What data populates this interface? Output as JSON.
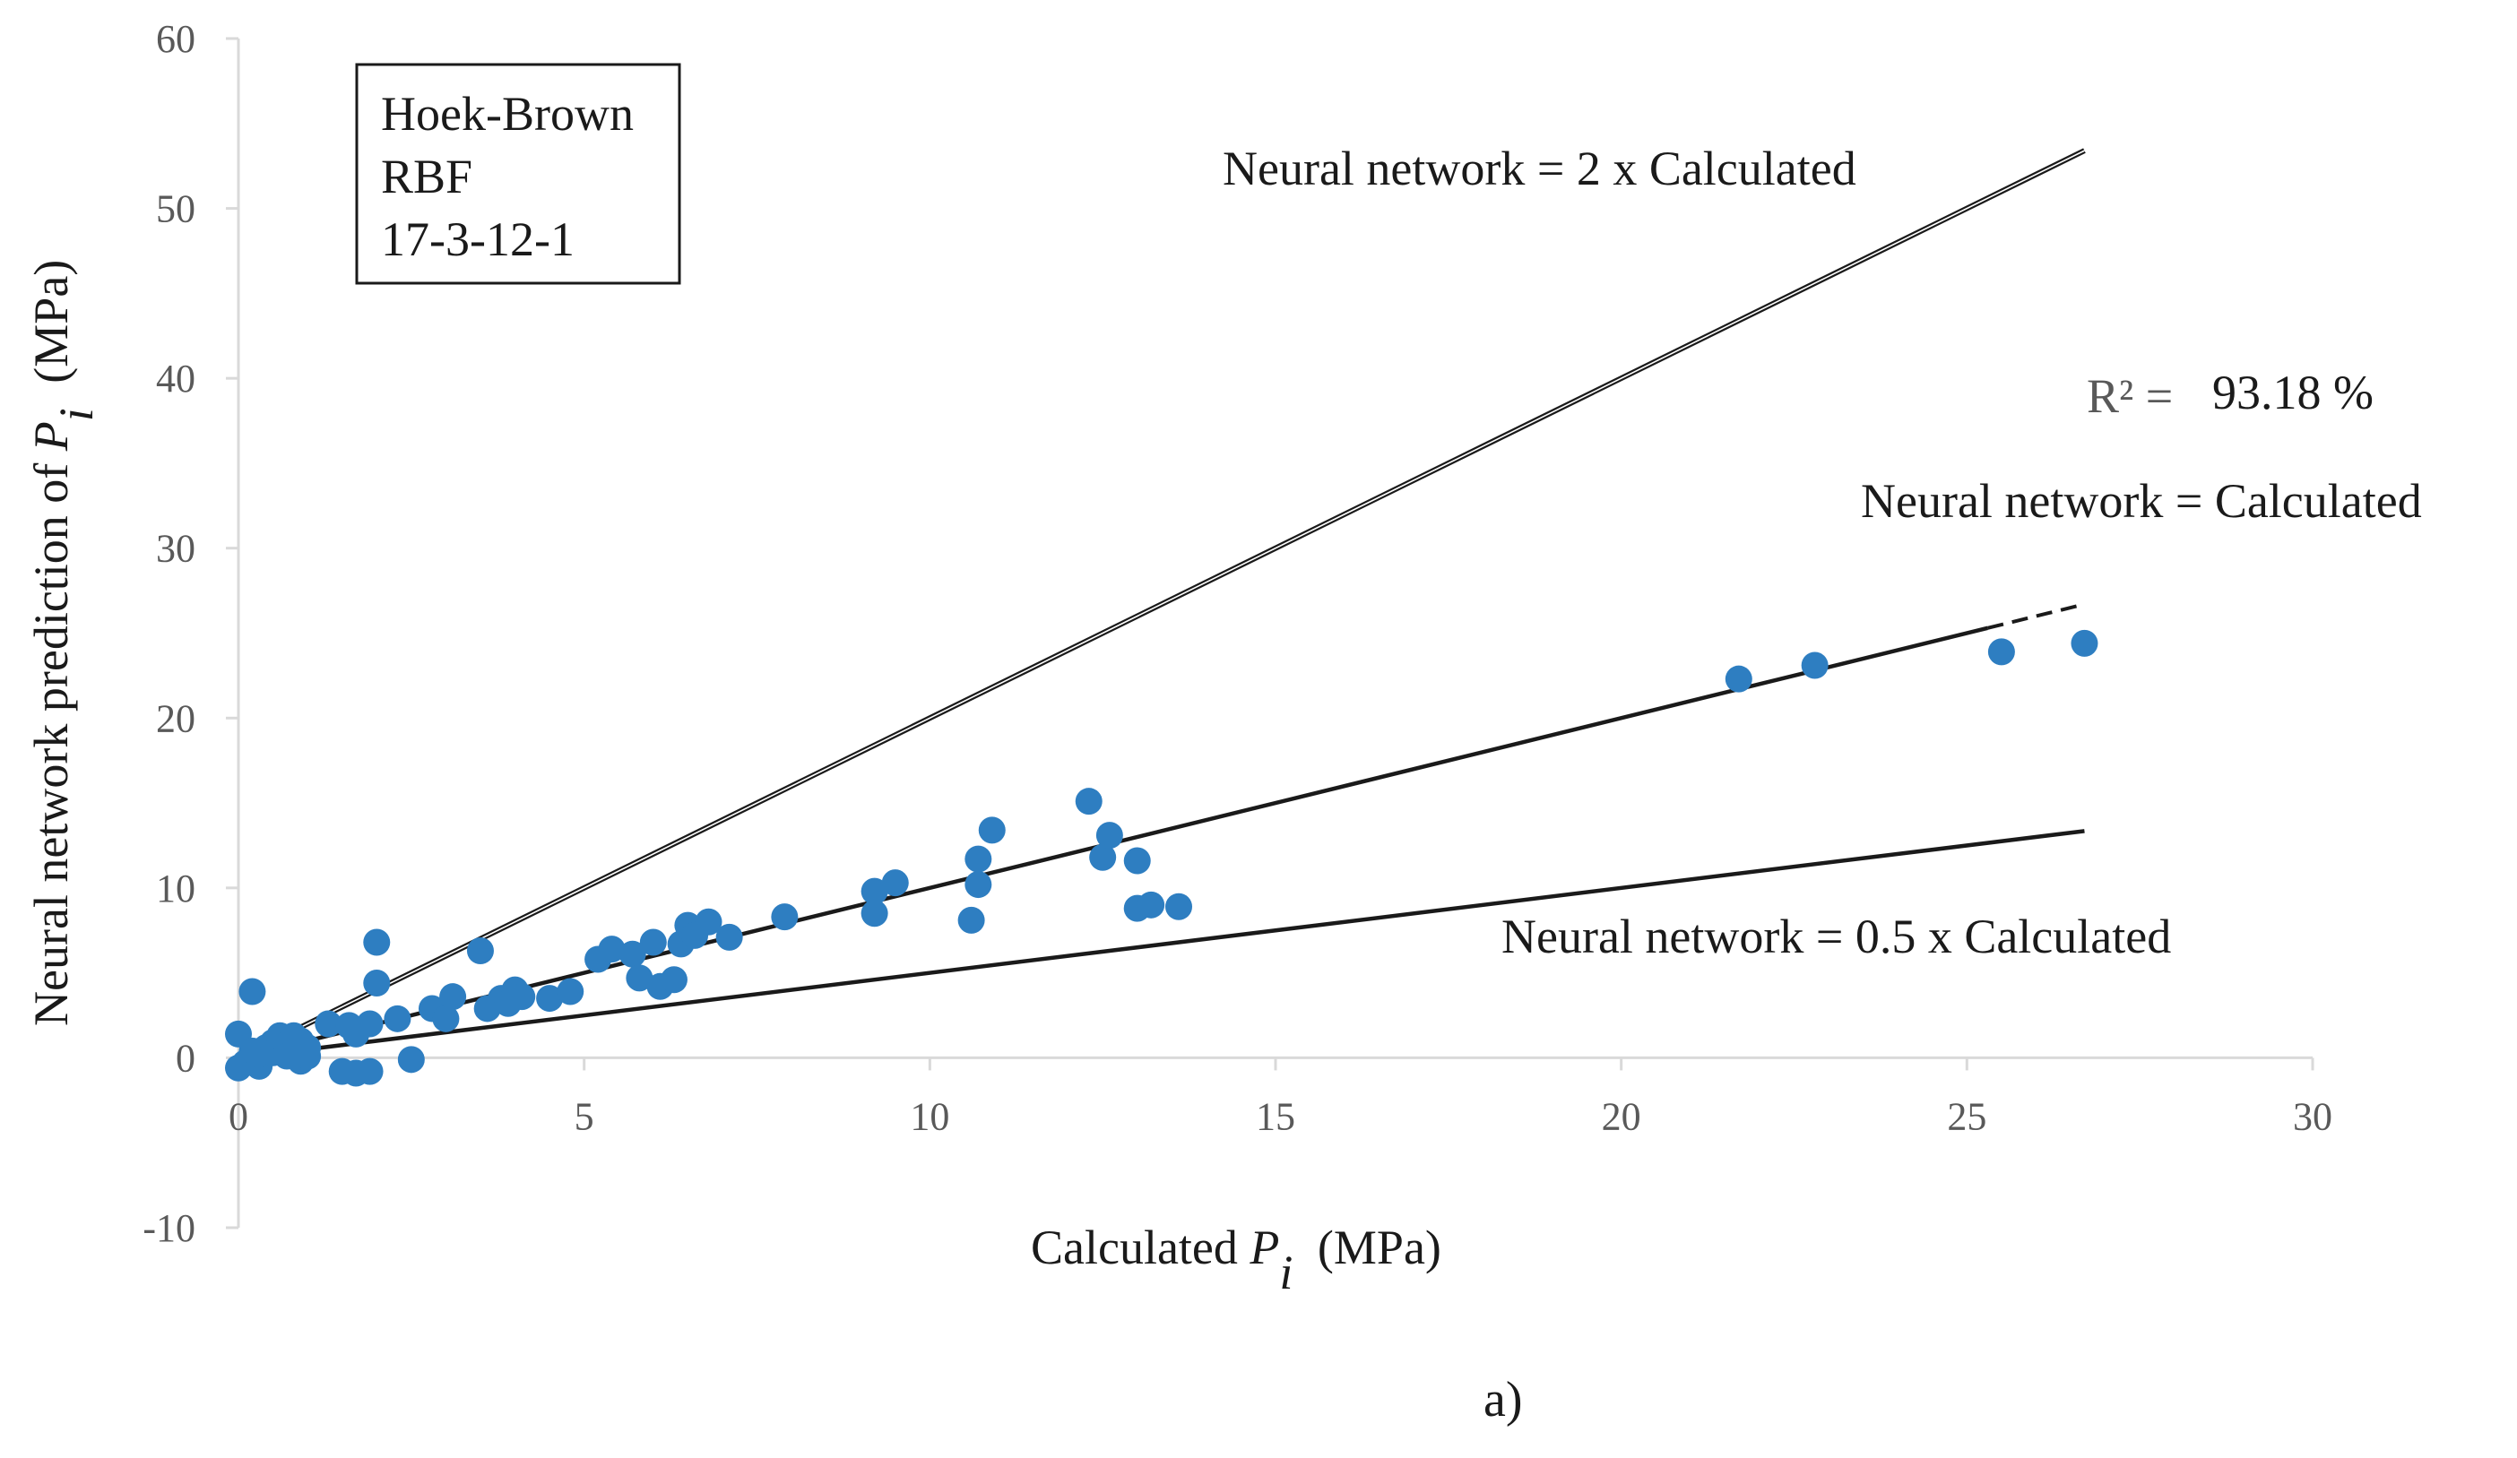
{
  "chart_data": {
    "type": "scatter",
    "title": "",
    "xlabel": {
      "prefix": "Calculated ",
      "symbol": "P",
      "subscript": "i",
      "suffix": " (MPa)"
    },
    "ylabel": {
      "prefix": "Neural network prediction of ",
      "symbol": "P",
      "subscript": "i",
      "suffix": " (MPa)"
    },
    "xlim": [
      0,
      30
    ],
    "ylim": [
      -10,
      60
    ],
    "xticks": [
      0,
      5,
      10,
      15,
      20,
      25,
      30
    ],
    "yticks": [
      -10,
      0,
      10,
      20,
      30,
      40,
      50,
      60
    ],
    "grid": false,
    "legend_box": [
      "Hoek-Brown",
      "RBF",
      "17-3-12-1"
    ],
    "point_color": "#2E7EC1",
    "series": [
      {
        "name": "Data points",
        "points": [
          [
            0.0,
            1.4
          ],
          [
            0.0,
            -0.6
          ],
          [
            0.1,
            -0.3
          ],
          [
            0.2,
            0.4
          ],
          [
            0.2,
            3.9
          ],
          [
            0.3,
            -0.5
          ],
          [
            0.3,
            0.2
          ],
          [
            0.4,
            0.6
          ],
          [
            0.5,
            0.9
          ],
          [
            0.5,
            0.3
          ],
          [
            0.6,
            1.3
          ],
          [
            0.7,
            0.8
          ],
          [
            0.7,
            0.1
          ],
          [
            0.8,
            1.3
          ],
          [
            0.9,
            1.0
          ],
          [
            0.9,
            -0.2
          ],
          [
            1.0,
            0.6
          ],
          [
            1.0,
            0.1
          ],
          [
            1.3,
            2.0
          ],
          [
            1.5,
            -0.8
          ],
          [
            1.6,
            1.9
          ],
          [
            1.7,
            1.4
          ],
          [
            1.7,
            -0.9
          ],
          [
            1.9,
            -0.8
          ],
          [
            1.9,
            2.0
          ],
          [
            2.0,
            6.8
          ],
          [
            2.0,
            4.4
          ],
          [
            2.3,
            2.3
          ],
          [
            2.5,
            -0.1
          ],
          [
            2.8,
            2.9
          ],
          [
            3.0,
            2.3
          ],
          [
            3.1,
            3.6
          ],
          [
            3.5,
            6.3
          ],
          [
            3.6,
            2.9
          ],
          [
            3.8,
            3.5
          ],
          [
            3.9,
            3.2
          ],
          [
            4.0,
            4.0
          ],
          [
            4.1,
            3.6
          ],
          [
            4.5,
            3.5
          ],
          [
            4.8,
            3.9
          ],
          [
            5.2,
            5.8
          ],
          [
            5.4,
            6.4
          ],
          [
            5.7,
            6.1
          ],
          [
            5.8,
            4.7
          ],
          [
            6.0,
            6.8
          ],
          [
            6.1,
            4.2
          ],
          [
            6.3,
            4.6
          ],
          [
            6.4,
            6.7
          ],
          [
            6.5,
            7.8
          ],
          [
            6.6,
            7.2
          ],
          [
            6.8,
            8.0
          ],
          [
            7.1,
            7.1
          ],
          [
            7.9,
            8.3
          ],
          [
            9.2,
            9.8
          ],
          [
            9.2,
            8.5
          ],
          [
            9.5,
            10.3
          ],
          [
            10.6,
            8.1
          ],
          [
            10.7,
            10.2
          ],
          [
            10.7,
            11.7
          ],
          [
            10.9,
            13.4
          ],
          [
            12.3,
            15.1
          ],
          [
            12.5,
            11.8
          ],
          [
            12.6,
            13.1
          ],
          [
            13.0,
            11.6
          ],
          [
            13.0,
            8.8
          ],
          [
            13.2,
            9.0
          ],
          [
            13.6,
            8.9
          ],
          [
            21.7,
            22.3
          ],
          [
            22.8,
            23.1
          ],
          [
            25.5,
            23.9
          ],
          [
            26.7,
            24.4
          ]
        ]
      }
    ],
    "reference_lines": [
      {
        "name": "Neural network = 2 x Calculated",
        "slope": 2,
        "x_range": [
          0,
          26.7
        ],
        "style": "double"
      },
      {
        "name": "Neural network = Calculated",
        "slope": 1,
        "x_range": [
          0,
          26.7
        ],
        "style": "solid-then-dashed"
      },
      {
        "name": "Neural network = 0.5 x Calculated",
        "slope": 0.5,
        "x_range": [
          0,
          26.7
        ],
        "style": "solid"
      }
    ],
    "annotations": {
      "r2_label": "R² =",
      "r2_value": "93.18 %"
    },
    "caption": "a)"
  }
}
